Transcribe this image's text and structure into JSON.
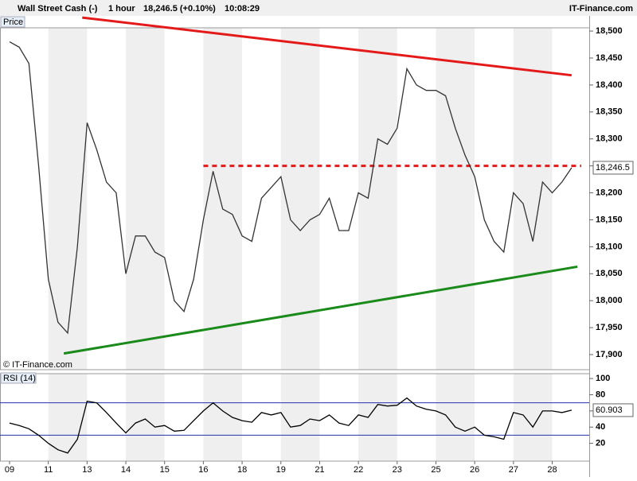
{
  "header": {
    "instrument": "Wall Street Cash (-)",
    "timeframe": "1 hour",
    "quote": "18,246.5 (+0.10%)",
    "time": "10:08:29",
    "brand": "IT-Finance.com",
    "copyright": "© IT-Finance.com"
  },
  "chart_data": [
    {
      "type": "line",
      "title": "Price",
      "categories": [
        "09",
        null,
        null,
        null,
        "11",
        null,
        null,
        null,
        "13",
        null,
        null,
        null,
        "14",
        null,
        null,
        null,
        "15",
        null,
        null,
        null,
        "16",
        null,
        null,
        null,
        "18",
        null,
        null,
        null,
        "19",
        null,
        null,
        null,
        "21",
        null,
        null,
        null,
        "22",
        null,
        null,
        null,
        "23",
        null,
        null,
        null,
        "25",
        null,
        null,
        null,
        "26",
        null,
        null,
        null,
        "27",
        null,
        null,
        null,
        "28",
        null,
        null
      ],
      "series": [
        {
          "color": "#333333",
          "values": [
            18480,
            18470,
            18440,
            18250,
            18040,
            17960,
            17940,
            18100,
            18330,
            18280,
            18220,
            18200,
            18050,
            18120,
            18120,
            18090,
            18080,
            18000,
            17980,
            18040,
            18150,
            18240,
            18170,
            18160,
            18120,
            18110,
            18190,
            18210,
            18230,
            18150,
            18130,
            18150,
            18160,
            18190,
            18130,
            18130,
            18200,
            18190,
            18300,
            18290,
            18320,
            18430,
            18400,
            18390,
            18390,
            18380,
            18320,
            18270,
            18230,
            18150,
            18110,
            18090,
            18200,
            18180,
            18110,
            18220,
            18200,
            18220,
            18246.5
          ]
        }
      ],
      "current_value": {
        "value": 18246.5,
        "label": "18,246.5"
      },
      "ylim": [
        17872,
        18506
      ],
      "yticks": [
        {
          "value": 17900,
          "label": "17,900"
        },
        {
          "value": 17950,
          "label": "17,950"
        },
        {
          "value": 18000,
          "label": "18,000"
        },
        {
          "value": 18050,
          "label": "18,050"
        },
        {
          "value": 18100,
          "label": "18,100"
        },
        {
          "value": 18150,
          "label": "18,150"
        },
        {
          "value": 18200,
          "label": "18,200"
        },
        {
          "value": 18250,
          "label": "18,250"
        },
        {
          "value": 18300,
          "label": "18,300"
        },
        {
          "value": 18350,
          "label": "18,350"
        },
        {
          "value": 18400,
          "label": "18,400"
        },
        {
          "value": 18450,
          "label": "18,450"
        },
        {
          "value": 18500,
          "label": "18,500"
        }
      ],
      "trendlines": [
        {
          "x": [
            7.5,
            58
          ],
          "y": [
            18525,
            18418
          ],
          "color": "#e41a1a",
          "dashed": false
        },
        {
          "x": [
            5.6,
            58.6
          ],
          "y": [
            17902,
            18063
          ],
          "color": "#1a8a1a",
          "dashed": false
        },
        {
          "x": [
            20,
            59
          ],
          "y": [
            18250,
            18250
          ],
          "color": "#e41a1a",
          "dashed": true
        }
      ]
    },
    {
      "type": "line",
      "title": "RSI (14)",
      "series": [
        {
          "color": "#000000",
          "values": [
            45,
            42,
            38,
            30,
            20,
            12,
            8,
            25,
            72,
            70,
            58,
            45,
            33,
            45,
            50,
            40,
            42,
            35,
            36,
            48,
            60,
            70,
            60,
            52,
            48,
            46,
            58,
            55,
            58,
            40,
            42,
            50,
            48,
            55,
            45,
            42,
            55,
            52,
            68,
            66,
            67,
            76,
            66,
            62,
            60,
            55,
            40,
            35,
            40,
            30,
            28,
            25,
            58,
            55,
            40,
            60,
            60,
            58,
            60.903
          ]
        }
      ],
      "current_value": {
        "value": 60.903,
        "label": "60.903"
      },
      "levels": [
        70,
        30
      ],
      "ylim": [
        -2,
        106
      ],
      "yticks": [
        20,
        40,
        60,
        80,
        100
      ]
    }
  ]
}
